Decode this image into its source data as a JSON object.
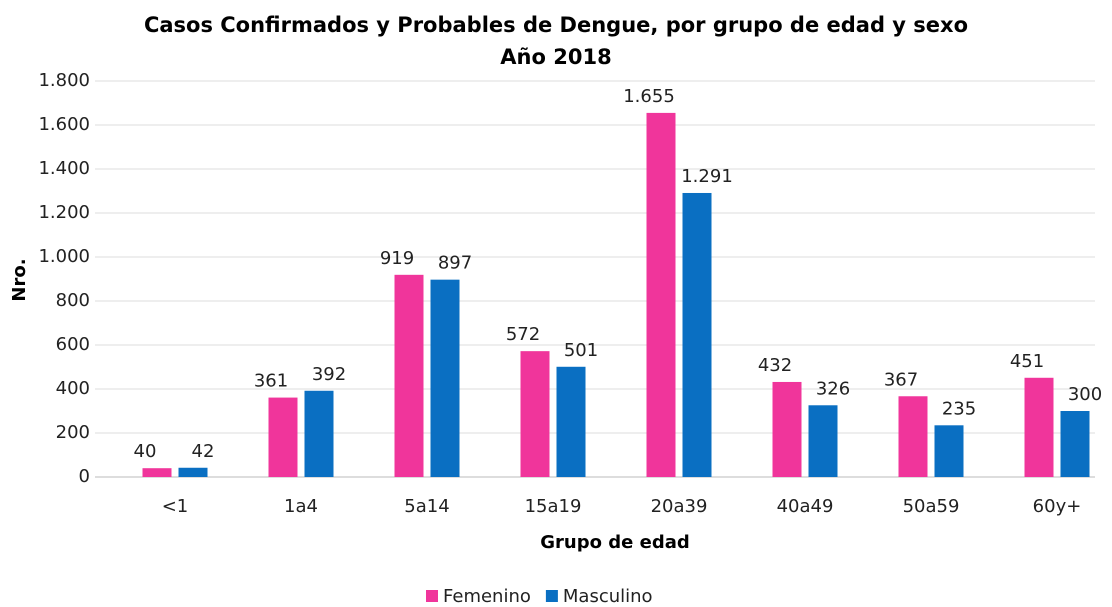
{
  "chart_data": {
    "type": "bar",
    "title": [
      "Casos Confirmados y Probables de Dengue, por grupo de edad y sexo",
      "Año 2018"
    ],
    "xlabel": "Grupo de edad",
    "ylabel": "Nro.",
    "categories": [
      "<1",
      "1a4",
      "5a14",
      "15a19",
      "20a39",
      "40a49",
      "50a59",
      "60y+"
    ],
    "series": [
      {
        "name": "Femenino",
        "color": "#f0359b",
        "values": [
          40,
          361,
          919,
          572,
          1655,
          432,
          367,
          451
        ],
        "value_labels": [
          "40",
          "361",
          "919",
          "572",
          "1.655",
          "432",
          "367",
          "451"
        ]
      },
      {
        "name": "Masculino",
        "color": "#0a6fc2",
        "values": [
          42,
          392,
          897,
          501,
          1291,
          326,
          235,
          300
        ],
        "value_labels": [
          "42",
          "392",
          "897",
          "501",
          "1.291",
          "326",
          "235",
          "300"
        ]
      }
    ],
    "ylim": [
      0,
      1800
    ],
    "yticks": [
      0,
      200,
      400,
      600,
      800,
      {
        "value": 1000,
        "label": "1.000"
      },
      {
        "value": 1200,
        "label": "1.200"
      },
      {
        "value": 1400,
        "label": "1.400"
      },
      {
        "value": 1600,
        "label": "1.600"
      },
      {
        "value": 1800,
        "label": "1.800"
      }
    ],
    "grid": true,
    "legend": "bottom"
  }
}
